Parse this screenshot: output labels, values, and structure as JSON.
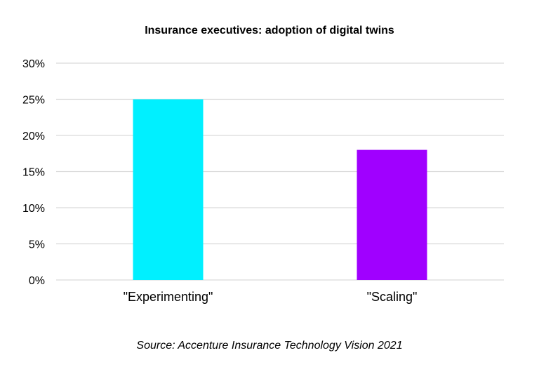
{
  "chart_data": {
    "type": "bar",
    "title": "Insurance executives: adoption of digital twins",
    "categories": [
      "\"Experimenting\"",
      "\"Scaling\""
    ],
    "values": [
      25,
      18
    ],
    "colors": [
      "#00F0FF",
      "#A000FF"
    ],
    "ylim": [
      0,
      30
    ],
    "yticks": [
      0,
      5,
      10,
      15,
      20,
      25,
      30
    ],
    "ytick_format": "percent",
    "xlabel": "",
    "ylabel": "",
    "grid": true,
    "legend": "none",
    "source": "Source: Accenture Insurance Technology Vision 2021"
  }
}
